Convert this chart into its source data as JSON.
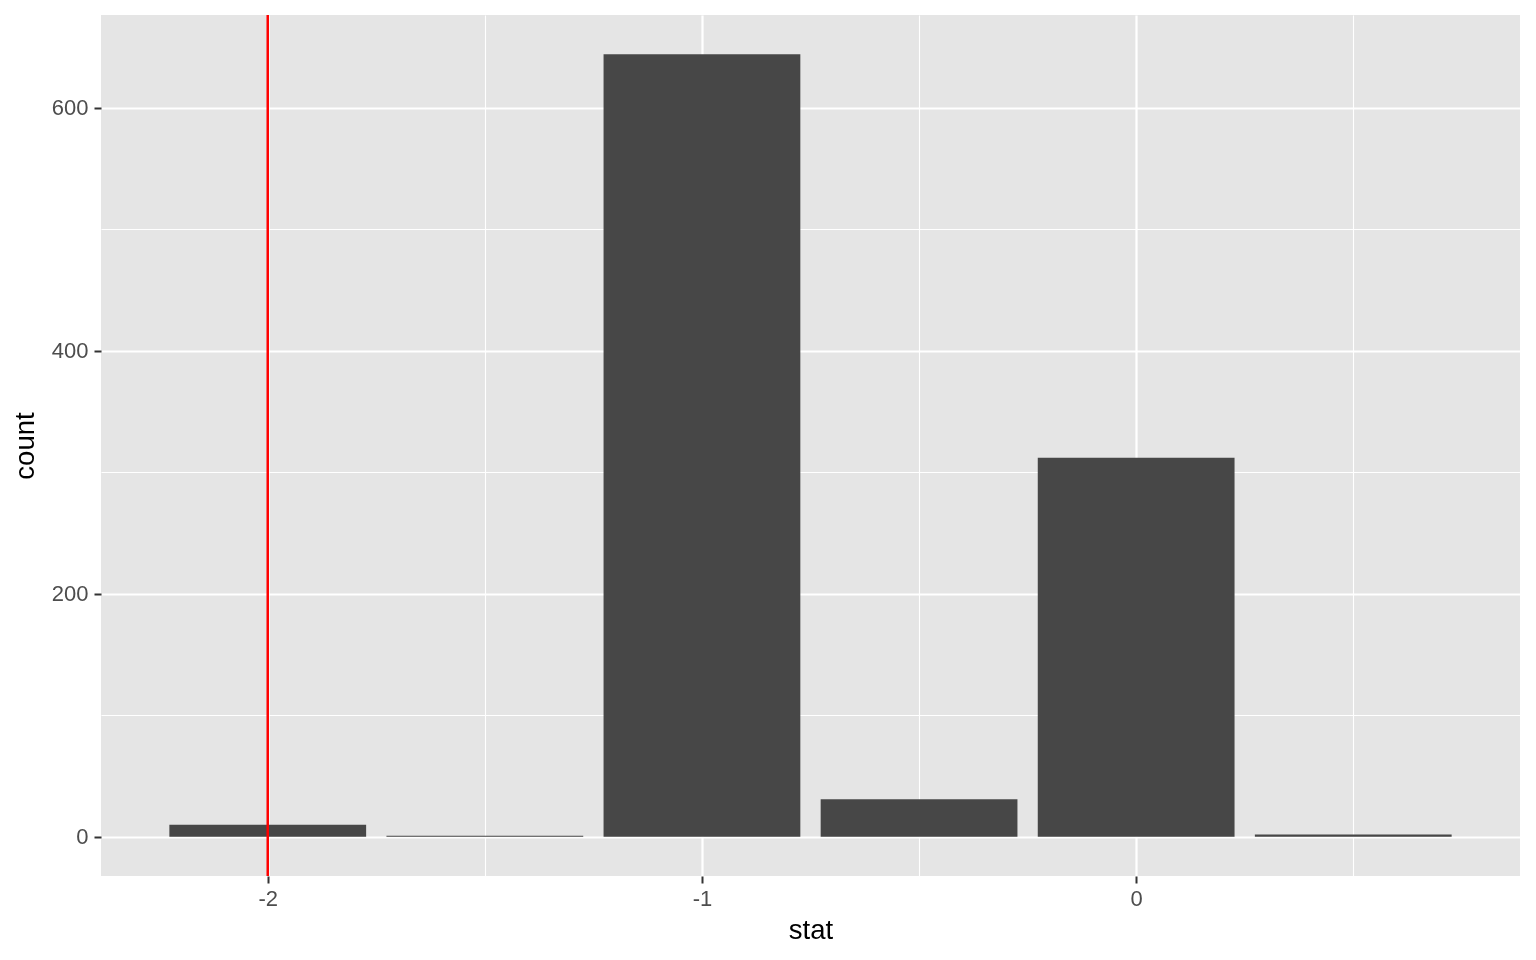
{
  "chart_data": {
    "type": "bar",
    "xlabel": "stat",
    "ylabel": "count",
    "x": [
      -2,
      -1.5,
      -1,
      -0.5,
      0,
      0.5
    ],
    "values": [
      10,
      1,
      644,
      31,
      312,
      2
    ],
    "color": "#474747",
    "xlim": [
      -2.3725,
      0.8725
    ],
    "xticks": [
      -2,
      {
        "value": -1.5,
        "label": null
      },
      -1,
      {
        "value": -0.5,
        "label": null
      },
      0,
      {
        "value": 0.5,
        "label": null
      }
    ],
    "ylim": [
      -32.2,
      676.2
    ],
    "yticks": [
      0,
      {
        "value": 100,
        "label": null
      },
      200,
      {
        "value": 300,
        "label": null
      },
      400,
      {
        "value": 500,
        "label": null
      },
      600
    ],
    "grid": true,
    "ref_lines": [
      {
        "axis": "x",
        "value": -2,
        "color": "#ff0000"
      }
    ]
  }
}
